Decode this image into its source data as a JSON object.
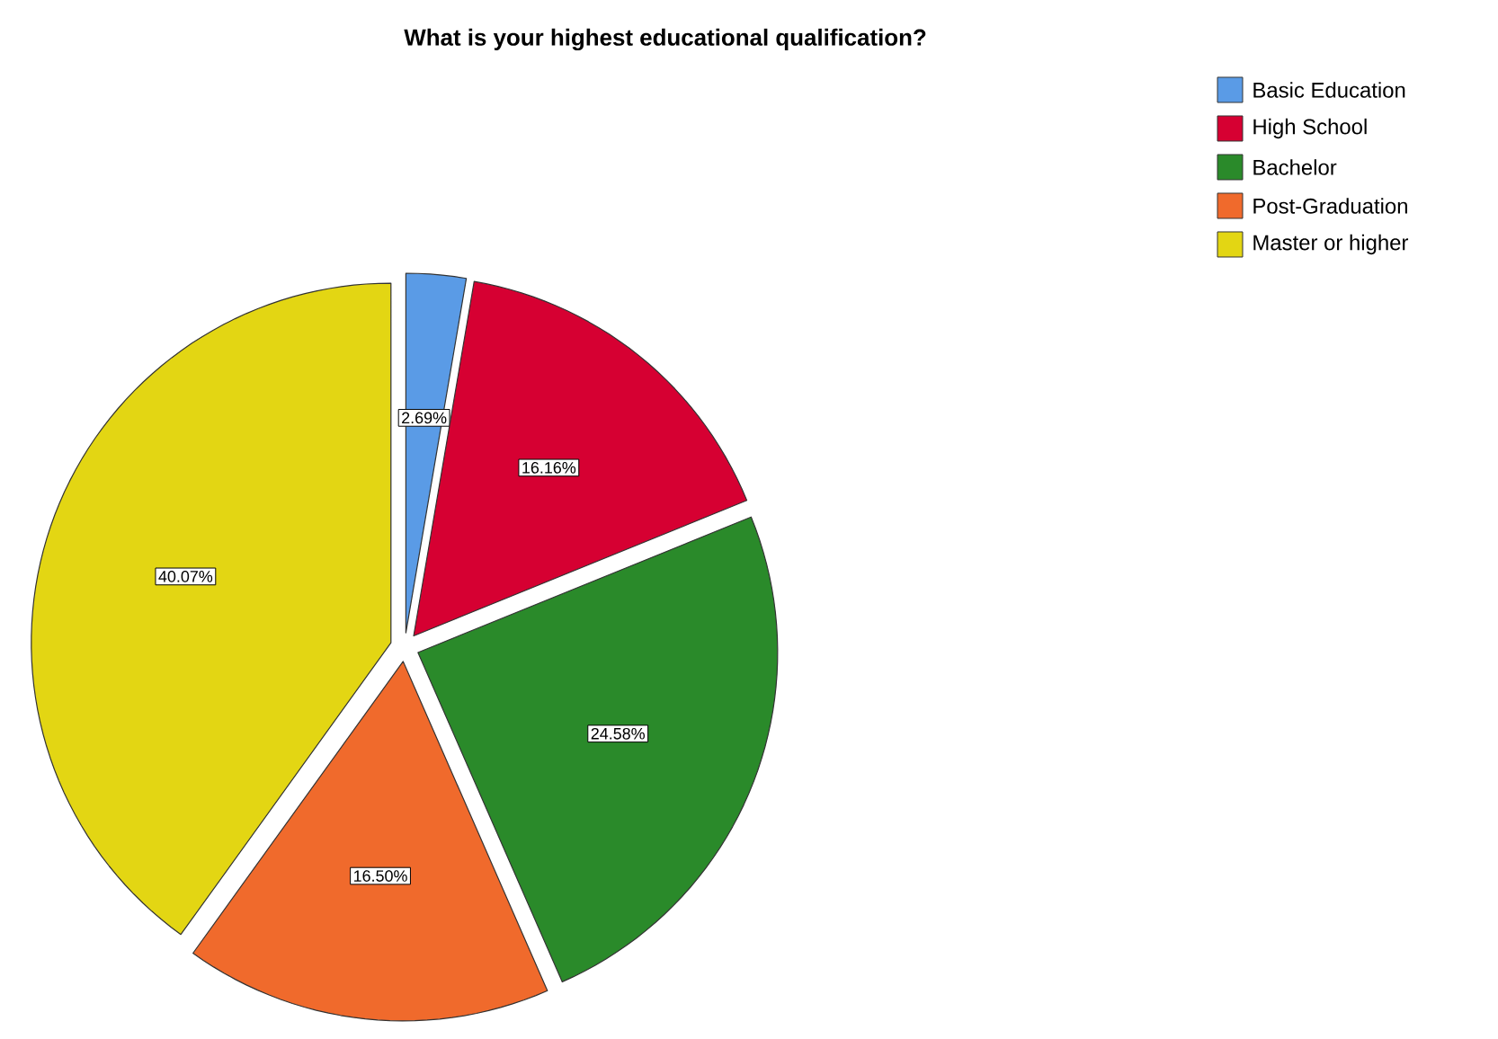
{
  "chart_data": {
    "type": "pie",
    "title": "What is your highest educational qualification?",
    "categories": [
      "Basic Education",
      "High School",
      "Bachelor",
      "Post-Graduation",
      "Master or higher"
    ],
    "values": [
      2.69,
      16.16,
      24.58,
      16.5,
      40.07
    ],
    "value_labels": [
      "2.69%",
      "16.16%",
      "24.58%",
      "16.50%",
      "40.07%"
    ],
    "colors": [
      "#5a9be6",
      "#d60032",
      "#2a8a2a",
      "#f06a2c",
      "#e3d613"
    ],
    "legend": "top right"
  }
}
